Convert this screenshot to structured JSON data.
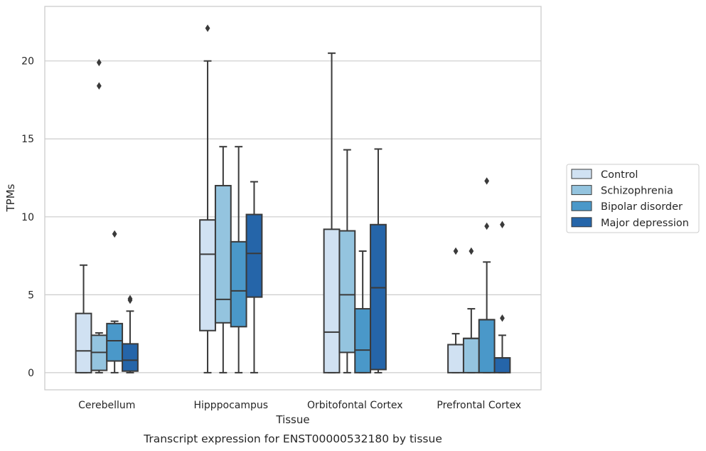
{
  "chart_data": {
    "type": "boxplot",
    "caption": "Transcript expression for ENST00000532180 by tissue",
    "xlabel": "Tissue",
    "ylabel": "TPMs",
    "ylim": [
      -1.1,
      23.5
    ],
    "yticks": [
      0,
      5,
      10,
      15,
      20
    ],
    "grid": "horizontal",
    "legend_position": "right",
    "categories": [
      "Cerebellum",
      "Hipppocampus",
      "Orbitofontal Cortex",
      "Prefrontal Cortex"
    ],
    "series": [
      {
        "name": "Control",
        "color": "#d0e1f2",
        "boxes": [
          {
            "whisker_low": 0,
            "q1": 0,
            "median": 1.4,
            "q3": 3.8,
            "whisker_high": 6.9,
            "outliers": []
          },
          {
            "whisker_low": 0,
            "q1": 2.7,
            "median": 7.6,
            "q3": 9.8,
            "whisker_high": 20.0,
            "outliers": [
              22.1
            ]
          },
          {
            "whisker_low": 0,
            "q1": 0,
            "median": 2.6,
            "q3": 9.2,
            "whisker_high": 20.5,
            "outliers": []
          },
          {
            "whisker_low": 0,
            "q1": 0,
            "median": 1.8,
            "q3": 1.8,
            "whisker_high": 2.5,
            "outliers": [
              7.8
            ]
          }
        ]
      },
      {
        "name": "Schizophrenia",
        "color": "#94c4df",
        "boxes": [
          {
            "whisker_low": 0,
            "q1": 0.15,
            "median": 1.3,
            "q3": 2.4,
            "whisker_high": 2.55,
            "outliers": [
              18.4,
              19.9
            ]
          },
          {
            "whisker_low": 0,
            "q1": 3.2,
            "median": 4.7,
            "q3": 12.0,
            "whisker_high": 14.5,
            "outliers": []
          },
          {
            "whisker_low": 0,
            "q1": 1.3,
            "median": 5.0,
            "q3": 9.1,
            "whisker_high": 14.3,
            "outliers": []
          },
          {
            "whisker_low": 0,
            "q1": 0,
            "median": 2.2,
            "q3": 2.2,
            "whisker_high": 4.1,
            "outliers": [
              7.8
            ]
          }
        ]
      },
      {
        "name": "Bipolar disorder",
        "color": "#4a98c9",
        "boxes": [
          {
            "whisker_low": 0,
            "q1": 0.75,
            "median": 2.05,
            "q3": 3.15,
            "whisker_high": 3.3,
            "outliers": [
              8.9
            ]
          },
          {
            "whisker_low": 0,
            "q1": 2.95,
            "median": 5.25,
            "q3": 8.4,
            "whisker_high": 14.5,
            "outliers": []
          },
          {
            "whisker_low": 0,
            "q1": 0,
            "median": 1.45,
            "q3": 4.1,
            "whisker_high": 7.8,
            "outliers": []
          },
          {
            "whisker_low": 0,
            "q1": 0,
            "median": 3.4,
            "q3": 3.4,
            "whisker_high": 7.1,
            "outliers": [
              9.4,
              12.3
            ]
          }
        ]
      },
      {
        "name": "Major depression",
        "color": "#2565a9",
        "boxes": [
          {
            "whisker_low": 0,
            "q1": 0.1,
            "median": 0.8,
            "q3": 1.85,
            "whisker_high": 3.95,
            "outliers": [
              4.65,
              4.75
            ]
          },
          {
            "whisker_low": 0,
            "q1": 4.85,
            "median": 7.65,
            "q3": 10.15,
            "whisker_high": 12.25,
            "outliers": []
          },
          {
            "whisker_low": 0,
            "q1": 0.2,
            "median": 5.45,
            "q3": 9.5,
            "whisker_high": 14.35,
            "outliers": []
          },
          {
            "whisker_low": 0,
            "q1": 0,
            "median": 0.95,
            "q3": 0.95,
            "whisker_high": 2.4,
            "outliers": [
              3.5,
              9.5
            ]
          }
        ]
      }
    ]
  }
}
